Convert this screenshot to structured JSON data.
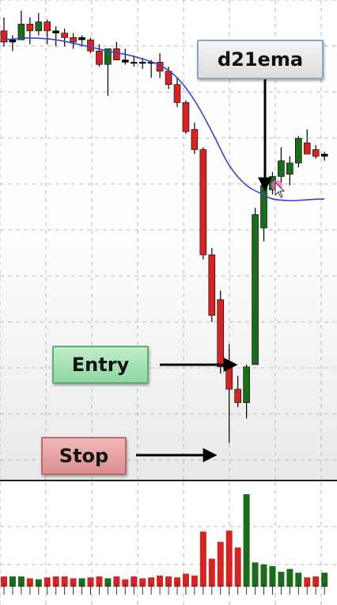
{
  "annotations": {
    "ema_label": "d21ema",
    "entry_label": "Entry",
    "stop_label": "Stop"
  },
  "colors": {
    "bull": "#1a6b1a",
    "bear": "#d42424",
    "ema_line": "#3344dd",
    "grid": "#b9b9b9",
    "arrow": "#000000"
  },
  "chart_data": {
    "type": "candlestick",
    "price_range": [
      0,
      100
    ],
    "volume_range": [
      0,
      100
    ],
    "grid": true,
    "candles": [
      {
        "o": 94.0,
        "h": 97.0,
        "l": 90.5,
        "c": 91.5
      },
      {
        "o": 91.5,
        "h": 93.0,
        "l": 89.5,
        "c": 92.0
      },
      {
        "o": 92.0,
        "h": 98.5,
        "l": 92.0,
        "c": 95.5
      },
      {
        "o": 95.5,
        "h": 97.0,
        "l": 91.0,
        "c": 94.0
      },
      {
        "o": 94.0,
        "h": 98.0,
        "l": 93.0,
        "c": 96.0
      },
      {
        "o": 96.0,
        "h": 96.5,
        "l": 91.0,
        "c": 94.0
      },
      {
        "o": 94.0,
        "h": 95.0,
        "l": 90.5,
        "c": 93.5
      },
      {
        "o": 93.5,
        "h": 94.5,
        "l": 90.5,
        "c": 92.5
      },
      {
        "o": 92.5,
        "h": 93.5,
        "l": 90.0,
        "c": 91.5
      },
      {
        "o": 92.0,
        "h": 93.0,
        "l": 90.5,
        "c": 92.5
      },
      {
        "o": 92.0,
        "h": 92.5,
        "l": 89.0,
        "c": 89.5
      },
      {
        "o": 89.5,
        "h": 91.0,
        "l": 86.0,
        "c": 86.5
      },
      {
        "o": 86.5,
        "h": 90.0,
        "l": 79.5,
        "c": 90.0
      },
      {
        "o": 90.0,
        "h": 91.5,
        "l": 87.5,
        "c": 87.5
      },
      {
        "o": 87.5,
        "h": 90.0,
        "l": 86.5,
        "c": 87.0
      },
      {
        "o": 87.0,
        "h": 88.5,
        "l": 86.0,
        "c": 87.0
      },
      {
        "o": 87.0,
        "h": 88.0,
        "l": 85.5,
        "c": 87.0
      },
      {
        "o": 87.0,
        "h": 87.5,
        "l": 83.5,
        "c": 87.0
      },
      {
        "o": 87.0,
        "h": 89.0,
        "l": 83.5,
        "c": 85.0
      },
      {
        "o": 85.0,
        "h": 86.0,
        "l": 81.0,
        "c": 82.0
      },
      {
        "o": 82.0,
        "h": 83.5,
        "l": 77.0,
        "c": 78.0
      },
      {
        "o": 78.0,
        "h": 78.5,
        "l": 71.0,
        "c": 71.5
      },
      {
        "o": 72.0,
        "h": 73.5,
        "l": 66.5,
        "c": 67.5
      },
      {
        "o": 67.5,
        "h": 68.0,
        "l": 43.0,
        "c": 44.0
      },
      {
        "o": 44.0,
        "h": 45.5,
        "l": 29.0,
        "c": 30.5
      },
      {
        "o": 34.0,
        "h": 36.0,
        "l": 17.5,
        "c": 19.0
      },
      {
        "o": 20.0,
        "h": 24.0,
        "l": 2.0,
        "c": 14.0
      },
      {
        "o": 14.0,
        "h": 17.0,
        "l": 10.0,
        "c": 11.0
      },
      {
        "o": 11.0,
        "h": 19.5,
        "l": 7.5,
        "c": 19.0
      },
      {
        "o": 19.5,
        "h": 54.5,
        "l": 19.5,
        "c": 53.0
      },
      {
        "o": 50.0,
        "h": 60.0,
        "l": 47.0,
        "c": 59.5
      },
      {
        "o": 58.5,
        "h": 62.5,
        "l": 57.5,
        "c": 61.5
      },
      {
        "o": 61.5,
        "h": 68.0,
        "l": 60.0,
        "c": 65.0
      },
      {
        "o": 62.0,
        "h": 66.0,
        "l": 59.5,
        "c": 64.5
      },
      {
        "o": 64.5,
        "h": 70.5,
        "l": 63.5,
        "c": 70.0
      },
      {
        "o": 69.0,
        "h": 72.0,
        "l": 66.5,
        "c": 66.5
      },
      {
        "o": 67.5,
        "h": 68.5,
        "l": 65.5,
        "c": 66.0
      },
      {
        "o": 66.0,
        "h": 67.0,
        "l": 65.0,
        "c": 66.5
      }
    ],
    "volume": [
      11,
      11,
      11,
      9,
      8,
      10,
      11,
      11,
      9,
      9,
      10,
      11,
      9,
      11,
      8,
      11,
      9,
      10,
      12,
      11,
      10,
      14,
      12,
      59,
      30,
      48,
      60,
      42,
      99,
      26,
      24,
      22,
      16,
      19,
      15,
      10,
      11,
      15
    ],
    "ema": [
      [
        0,
        92.0
      ],
      [
        3,
        92.4
      ],
      [
        6,
        92.0
      ],
      [
        9,
        90.8
      ],
      [
        12,
        89.5
      ],
      [
        15,
        88.3
      ],
      [
        18,
        86.3
      ],
      [
        20,
        83.5
      ],
      [
        22,
        78.5
      ],
      [
        24,
        71.5
      ],
      [
        26,
        64.0
      ],
      [
        28,
        59.5
      ],
      [
        30,
        57.4
      ],
      [
        31,
        56.5
      ],
      [
        33,
        56.1
      ],
      [
        35,
        56.3
      ],
      [
        37,
        56.5
      ]
    ]
  }
}
